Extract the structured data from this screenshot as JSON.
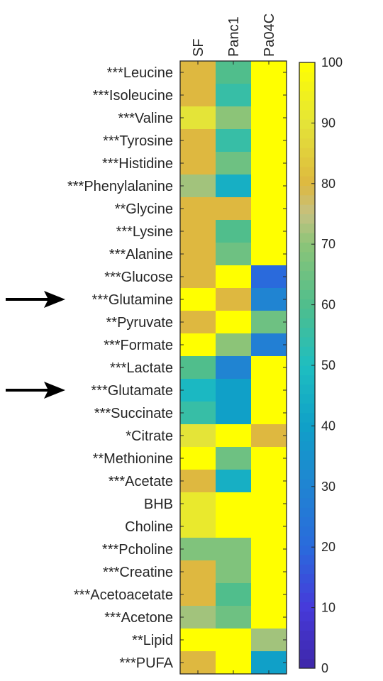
{
  "chart_data": {
    "type": "heatmap",
    "columns": [
      "SF",
      "Panc1",
      "Pa04C"
    ],
    "rows": [
      "***Leucine",
      "***Isoleucine",
      "***Valine",
      "***Tyrosine",
      "***Histidine",
      "***Phenylalanine",
      "**Glycine",
      "***Lysine",
      "***Alanine",
      "***Glucose",
      "***Glutamine",
      "**Pyruvate",
      "***Formate",
      "***Lactate",
      "***Glutamate",
      "***Succinate",
      "*Citrate",
      "**Methionine",
      "***Acetate",
      "BHB",
      "Choline",
      "***Pcholine",
      "***Creatine",
      "***Acetoacetate",
      "***Acetone",
      "**Lipid",
      "***PUFA"
    ],
    "values": [
      [
        80,
        60,
        100
      ],
      [
        80,
        55,
        100
      ],
      [
        90,
        70,
        100
      ],
      [
        80,
        55,
        100
      ],
      [
        80,
        65,
        100
      ],
      [
        72,
        45,
        100
      ],
      [
        80,
        80,
        100
      ],
      [
        80,
        60,
        100
      ],
      [
        80,
        65,
        100
      ],
      [
        80,
        100,
        20
      ],
      [
        100,
        80,
        30
      ],
      [
        80,
        100,
        65
      ],
      [
        100,
        70,
        28
      ],
      [
        60,
        30,
        100
      ],
      [
        48,
        40,
        100
      ],
      [
        55,
        40,
        100
      ],
      [
        90,
        100,
        80
      ],
      [
        100,
        65,
        100
      ],
      [
        80,
        45,
        100
      ],
      [
        92,
        100,
        100
      ],
      [
        92,
        100,
        100
      ],
      [
        68,
        68,
        100
      ],
      [
        80,
        68,
        100
      ],
      [
        80,
        60,
        100
      ],
      [
        72,
        65,
        100
      ],
      [
        100,
        100,
        72
      ],
      [
        80,
        100,
        40
      ]
    ],
    "colorbar": {
      "min": 0,
      "max": 100,
      "ticks": [
        0,
        10,
        20,
        30,
        40,
        50,
        60,
        70,
        80,
        90,
        100
      ],
      "tick_labels": [
        "0",
        "10",
        "20",
        "30",
        "40",
        "50",
        "60",
        "70",
        "80",
        "90",
        "100"
      ],
      "levels": 64,
      "colormap": "parula"
    },
    "highlighted_rows": [
      "***Glutamine",
      "***Glutamate"
    ]
  }
}
